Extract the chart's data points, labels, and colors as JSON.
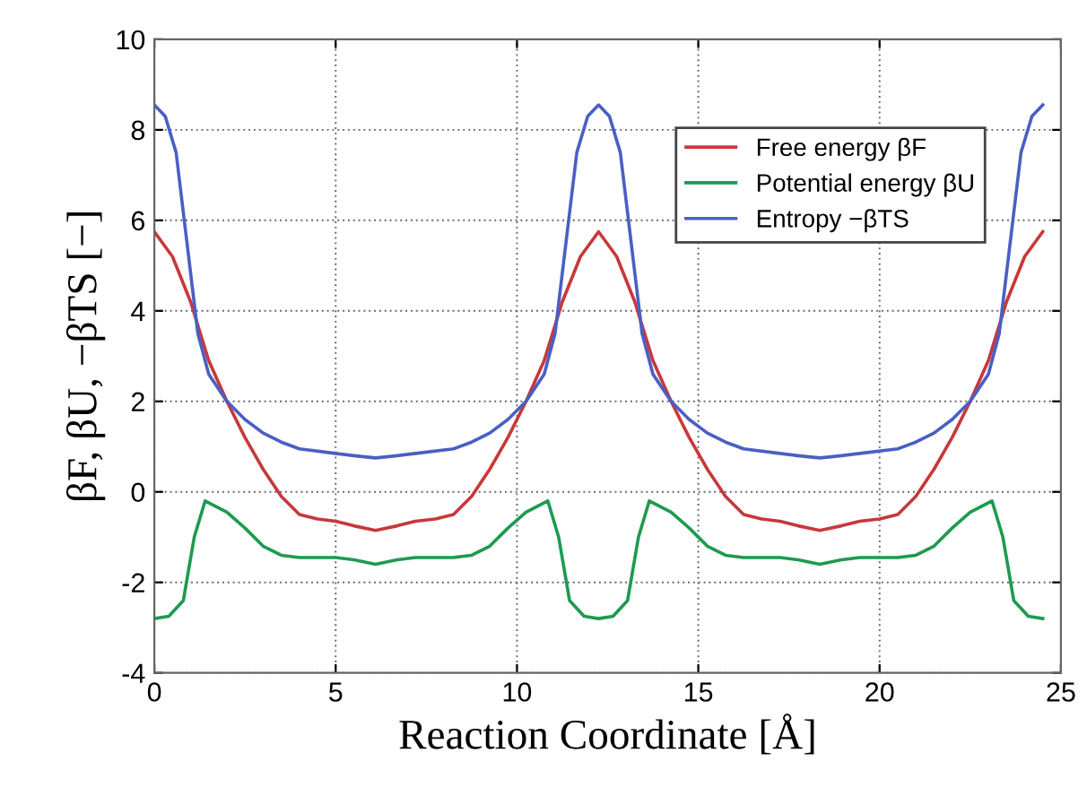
{
  "chart_data": {
    "type": "line",
    "xlabel": "Reaction Coordinate [Å]",
    "ylabel": "βF, βU, −βTS [−]",
    "xlim": [
      0,
      25
    ],
    "ylim": [
      -4,
      10
    ],
    "xticks": [
      0,
      5,
      10,
      15,
      20,
      25
    ],
    "yticks": [
      -4,
      -2,
      0,
      2,
      4,
      6,
      8,
      10
    ],
    "grid": true,
    "legend": "top right",
    "series": [
      {
        "name": "Free energy βF",
        "color": "#c8383a",
        "x": [
          0,
          0.5,
          1,
          1.5,
          2,
          2.5,
          3,
          3.5,
          4,
          4.5,
          5,
          5.5,
          6.1,
          6.7,
          7.2,
          7.75,
          8.25,
          8.75,
          9.25,
          9.75,
          10.25,
          10.75,
          11.25,
          11.75,
          12.25,
          12.75,
          13.25,
          13.75,
          14.25,
          14.75,
          15.25,
          15.75,
          16.25,
          16.75,
          17.25,
          17.75,
          18.35,
          18.95,
          19.45,
          20,
          20.5,
          21,
          21.5,
          22,
          22.5,
          23,
          23.5,
          24,
          24.5
        ],
        "values": [
          5.75,
          5.2,
          4.2,
          2.9,
          2.0,
          1.2,
          0.5,
          -0.1,
          -0.5,
          -0.6,
          -0.65,
          -0.75,
          -0.85,
          -0.75,
          -0.65,
          -0.6,
          -0.5,
          -0.1,
          0.5,
          1.2,
          2.0,
          2.9,
          4.2,
          5.2,
          5.75,
          5.2,
          4.2,
          2.9,
          2.0,
          1.2,
          0.5,
          -0.1,
          -0.5,
          -0.6,
          -0.65,
          -0.75,
          -0.85,
          -0.75,
          -0.65,
          -0.6,
          -0.5,
          -0.1,
          0.5,
          1.2,
          2.0,
          2.9,
          4.2,
          5.2,
          5.75
        ]
      },
      {
        "name": "Potential energy βU",
        "color": "#1e9a50",
        "x": [
          0,
          0.4,
          0.8,
          1.1,
          1.4,
          2,
          2.5,
          3,
          3.5,
          4,
          5,
          5.5,
          6.1,
          6.7,
          7.2,
          8.25,
          8.75,
          9.25,
          9.75,
          10.25,
          10.85,
          11.15,
          11.45,
          11.85,
          12.25,
          12.65,
          13.05,
          13.35,
          13.65,
          14.25,
          14.75,
          15.25,
          15.75,
          16.25,
          17.25,
          17.75,
          18.35,
          18.95,
          19.45,
          20.5,
          21,
          21.5,
          22,
          22.5,
          23.1,
          23.4,
          23.7,
          24.1,
          24.5
        ],
        "values": [
          -2.8,
          -2.75,
          -2.4,
          -1.0,
          -0.2,
          -0.45,
          -0.8,
          -1.2,
          -1.4,
          -1.45,
          -1.45,
          -1.5,
          -1.6,
          -1.5,
          -1.45,
          -1.45,
          -1.4,
          -1.2,
          -0.8,
          -0.45,
          -0.2,
          -1.0,
          -2.4,
          -2.75,
          -2.8,
          -2.75,
          -2.4,
          -1.0,
          -0.2,
          -0.45,
          -0.8,
          -1.2,
          -1.4,
          -1.45,
          -1.45,
          -1.5,
          -1.6,
          -1.5,
          -1.45,
          -1.45,
          -1.4,
          -1.2,
          -0.8,
          -0.45,
          -0.2,
          -1.0,
          -2.4,
          -2.75,
          -2.8
        ]
      },
      {
        "name": "Entropy −βTS",
        "color": "#4a5fc4",
        "x": [
          0,
          0.3,
          0.6,
          0.9,
          1.2,
          1.5,
          2,
          2.5,
          3,
          3.5,
          4,
          5,
          5.5,
          6.1,
          6.7,
          7.2,
          8.25,
          8.75,
          9.25,
          9.75,
          10.25,
          10.75,
          11.05,
          11.35,
          11.65,
          11.95,
          12.25,
          12.55,
          12.85,
          13.15,
          13.45,
          13.75,
          14.25,
          14.75,
          15.25,
          15.75,
          16.25,
          17.25,
          17.75,
          18.35,
          18.95,
          19.45,
          20.5,
          21,
          21.5,
          22,
          22.5,
          23,
          23.3,
          23.6,
          23.9,
          24.2,
          24.5
        ],
        "values": [
          8.55,
          8.3,
          7.5,
          5.5,
          3.5,
          2.6,
          2.0,
          1.6,
          1.3,
          1.1,
          0.95,
          0.85,
          0.8,
          0.75,
          0.8,
          0.85,
          0.95,
          1.1,
          1.3,
          1.6,
          2.0,
          2.6,
          3.5,
          5.5,
          7.5,
          8.3,
          8.55,
          8.3,
          7.5,
          5.5,
          3.5,
          2.6,
          2.0,
          1.6,
          1.3,
          1.1,
          0.95,
          0.85,
          0.8,
          0.75,
          0.8,
          0.85,
          0.95,
          1.1,
          1.3,
          1.6,
          2.0,
          2.6,
          3.5,
          5.5,
          7.5,
          8.3,
          8.55
        ]
      }
    ]
  }
}
